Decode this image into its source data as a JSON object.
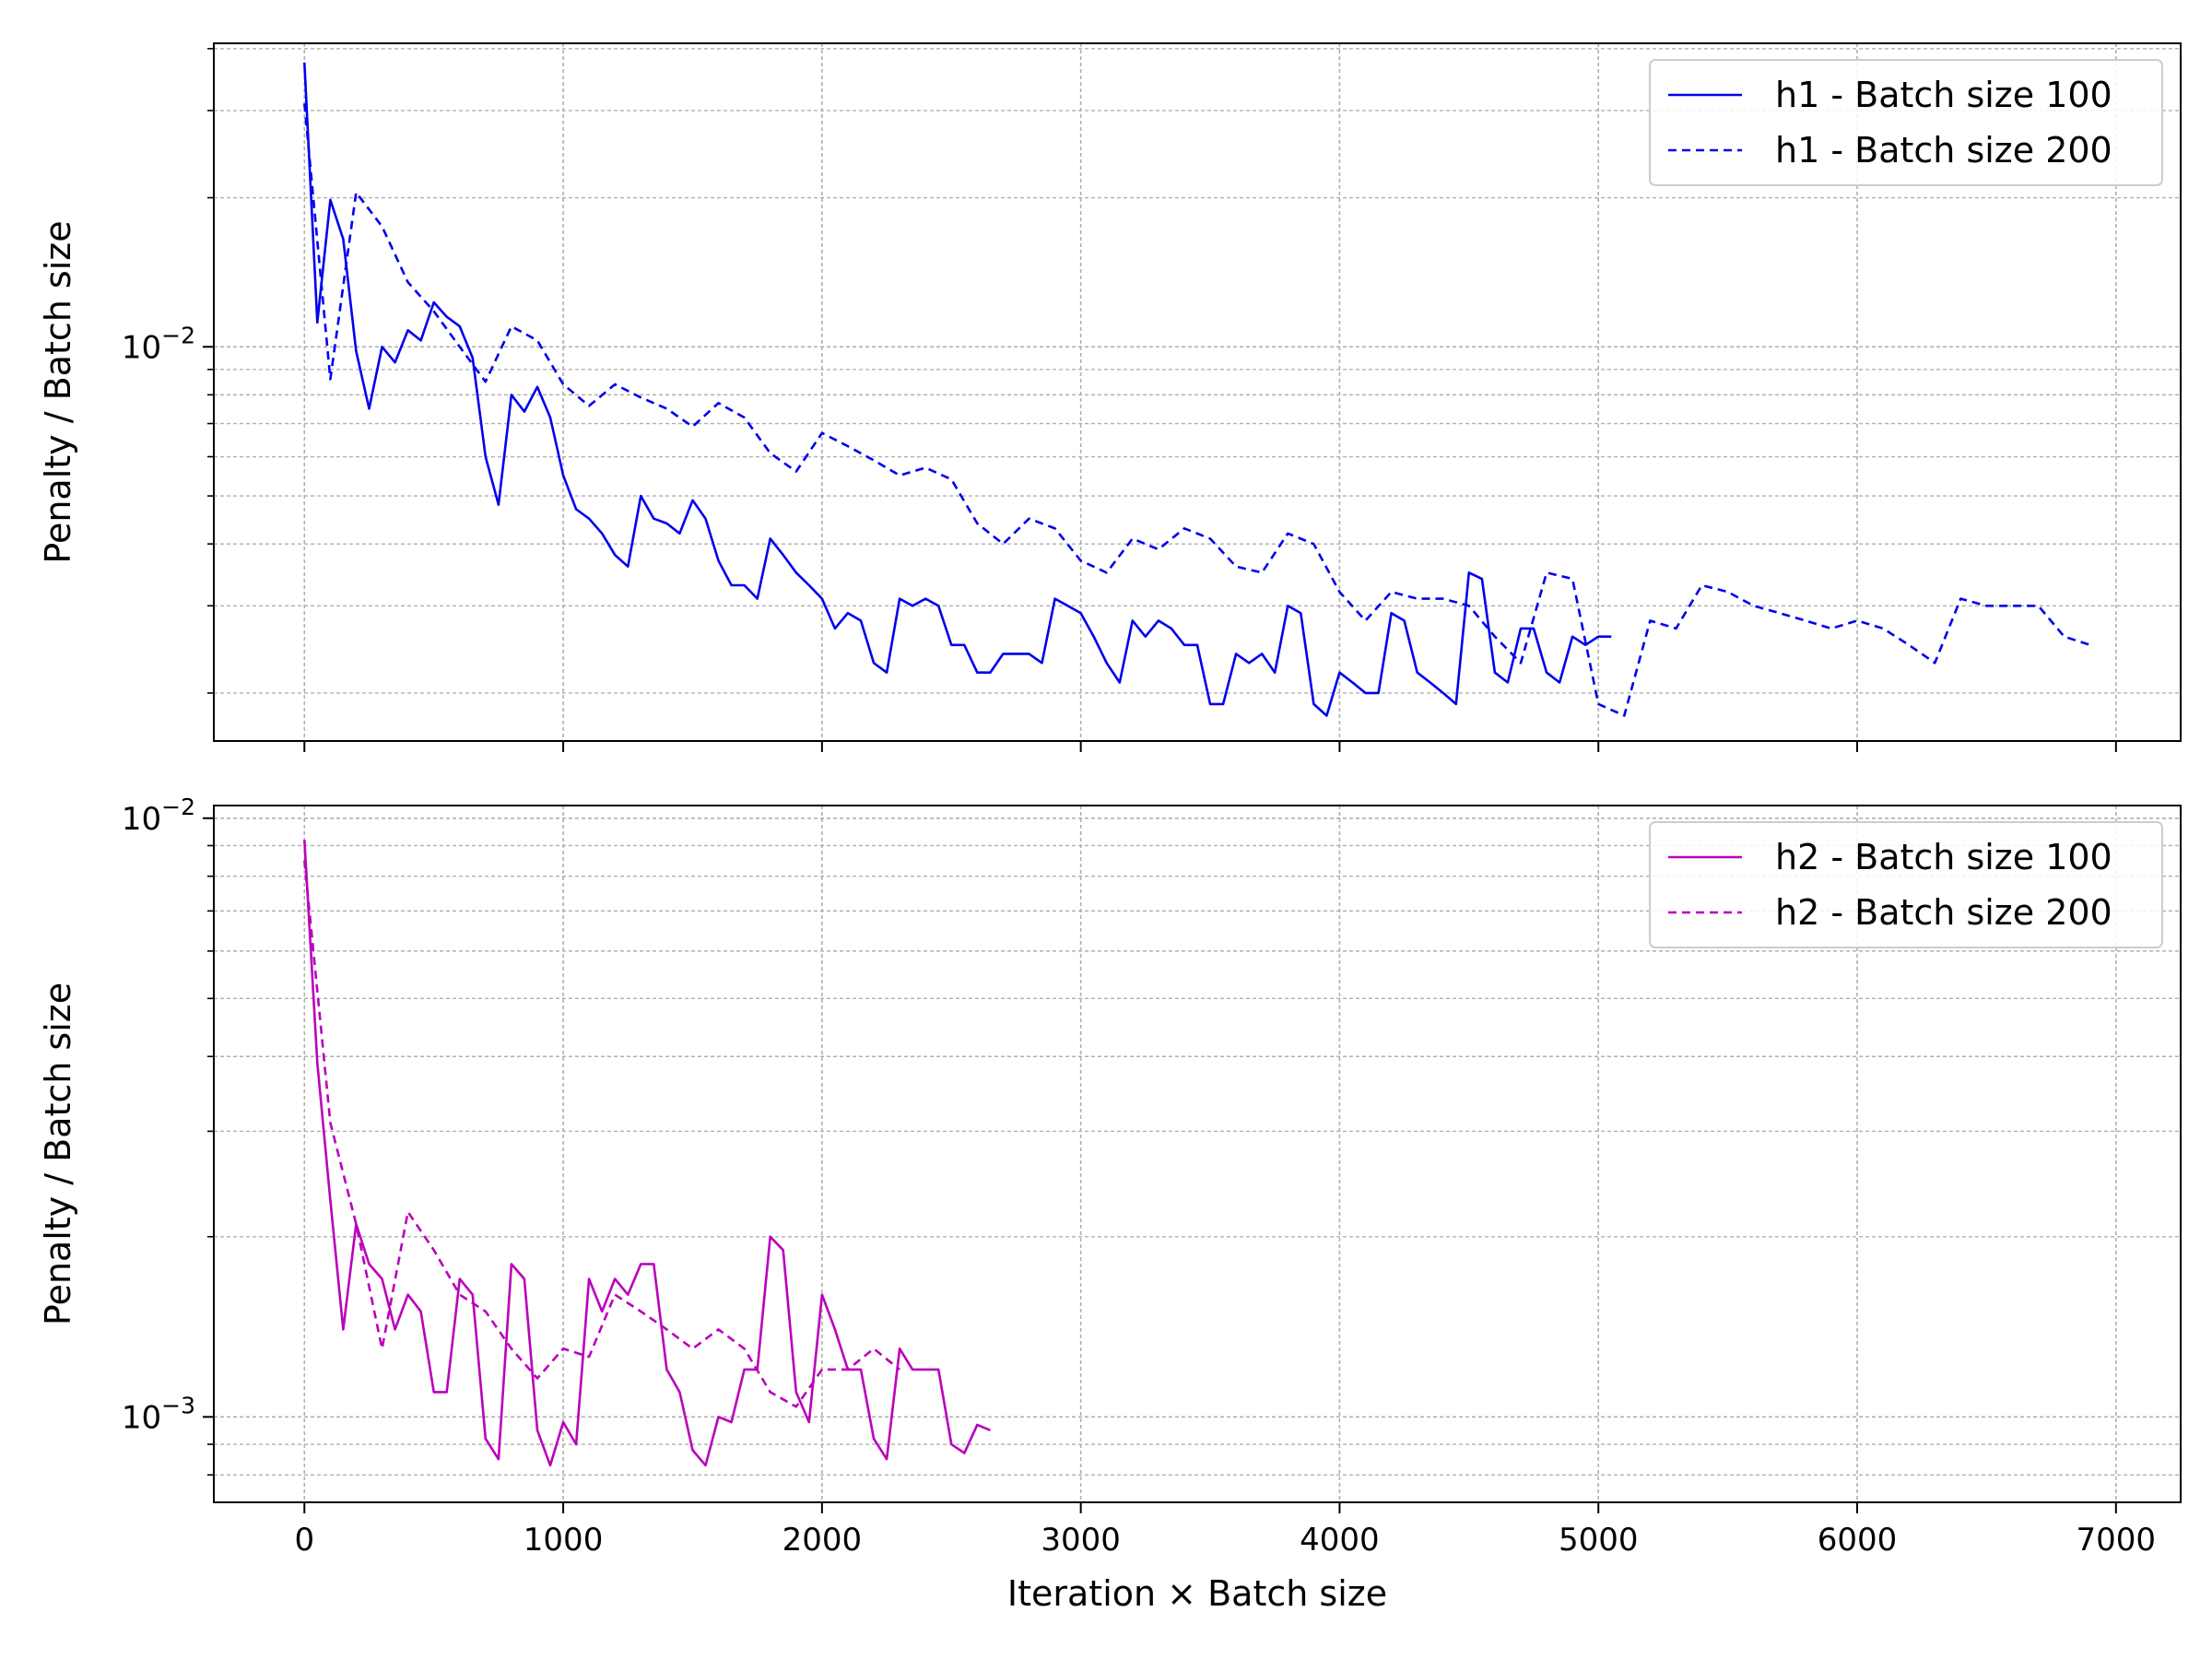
{
  "chart_data": [
    {
      "type": "line",
      "yscale": "log",
      "ylabel": "Penalty / Batch size",
      "xlabel": "",
      "xlim": [
        -350,
        7250
      ],
      "ylim": [
        0.0016,
        0.041
      ],
      "x_ticks": [
        0,
        1000,
        2000,
        3000,
        4000,
        5000,
        6000,
        7000
      ],
      "y_major_tick": {
        "value": 0.01,
        "base": "10",
        "exp": "−2"
      },
      "grid": true,
      "legend_position": "top-right",
      "series": [
        {
          "name": "h1 - Batch size 100",
          "color": "#0000ee",
          "style": "solid",
          "x": [
            0,
            50,
            100,
            150,
            200,
            250,
            300,
            350,
            400,
            450,
            500,
            550,
            600,
            650,
            700,
            750,
            800,
            850,
            900,
            950,
            1000,
            1050,
            1100,
            1150,
            1200,
            1250,
            1300,
            1350,
            1400,
            1450,
            1500,
            1550,
            1600,
            1650,
            1700,
            1750,
            1800,
            1850,
            1900,
            1950,
            2000,
            2050,
            2100,
            2150,
            2200,
            2250,
            2300,
            2350,
            2400,
            2450,
            2500,
            2550,
            2600,
            2650,
            2700,
            2750,
            2800,
            2850,
            2900,
            2950,
            3000,
            3050,
            3100,
            3150,
            3200,
            3250,
            3300,
            3350,
            3400,
            3450,
            3500,
            3550,
            3600,
            3650,
            3700,
            3750,
            3800,
            3850,
            3900,
            3950,
            4000,
            4050,
            4100,
            4150,
            4200,
            4250,
            4300,
            4350,
            4400,
            4450,
            4500,
            4550,
            4600,
            4650,
            4700,
            4750,
            4800,
            4850,
            4900,
            4950,
            5000,
            5050
          ],
          "values": [
            0.0375,
            0.0112,
            0.0198,
            0.0165,
            0.0098,
            0.0075,
            0.01,
            0.0093,
            0.0108,
            0.0103,
            0.0123,
            0.0115,
            0.011,
            0.0095,
            0.006,
            0.0048,
            0.008,
            0.0074,
            0.0083,
            0.0072,
            0.0055,
            0.0047,
            0.0045,
            0.0042,
            0.0038,
            0.0036,
            0.005,
            0.0045,
            0.0044,
            0.0042,
            0.0049,
            0.0045,
            0.0037,
            0.0033,
            0.0033,
            0.0031,
            0.0041,
            0.0038,
            0.0035,
            0.0033,
            0.0031,
            0.0027,
            0.0029,
            0.0028,
            0.0023,
            0.0022,
            0.0031,
            0.003,
            0.0031,
            0.003,
            0.0025,
            0.0025,
            0.0022,
            0.0022,
            0.0024,
            0.0024,
            0.0024,
            0.0023,
            0.0031,
            0.003,
            0.0029,
            0.0026,
            0.0023,
            0.0021,
            0.0028,
            0.0026,
            0.0028,
            0.0027,
            0.0025,
            0.0025,
            0.0019,
            0.0019,
            0.0024,
            0.0023,
            0.0024,
            0.0022,
            0.003,
            0.0029,
            0.0019,
            0.0018,
            0.0022,
            0.0021,
            0.002,
            0.002,
            0.0029,
            0.0028,
            0.0022,
            0.0021,
            0.002,
            0.0019,
            0.0035,
            0.0034,
            0.0022,
            0.0021,
            0.0027,
            0.0027,
            0.0022,
            0.0021,
            0.0026,
            0.0025,
            0.0026,
            0.0026
          ]
        },
        {
          "name": "h1 - Batch size 200",
          "color": "#0000ee",
          "style": "dashed",
          "x": [
            0,
            100,
            200,
            300,
            400,
            500,
            600,
            700,
            800,
            900,
            1000,
            1100,
            1200,
            1300,
            1400,
            1500,
            1600,
            1700,
            1800,
            1900,
            2000,
            2100,
            2200,
            2300,
            2400,
            2500,
            2600,
            2700,
            2800,
            2900,
            3000,
            3100,
            3200,
            3300,
            3400,
            3500,
            3600,
            3700,
            3800,
            3900,
            4000,
            4100,
            4200,
            4300,
            4400,
            4500,
            4600,
            4700,
            4800,
            4900,
            5000,
            5100,
            5200,
            5300,
            5400,
            5500,
            5600,
            5700,
            5800,
            5900,
            6000,
            6100,
            6200,
            6300,
            6400,
            6500,
            6600,
            6700,
            6800,
            6900
          ],
          "values": [
            0.031,
            0.0086,
            0.0205,
            0.0175,
            0.0135,
            0.0118,
            0.01,
            0.0085,
            0.011,
            0.0103,
            0.0084,
            0.0076,
            0.0084,
            0.0079,
            0.0075,
            0.0069,
            0.0077,
            0.0072,
            0.0061,
            0.0056,
            0.0067,
            0.0063,
            0.0059,
            0.0055,
            0.0057,
            0.0054,
            0.0044,
            0.004,
            0.0045,
            0.0043,
            0.0037,
            0.0035,
            0.0041,
            0.0039,
            0.0043,
            0.0041,
            0.0036,
            0.0035,
            0.0042,
            0.004,
            0.0032,
            0.0028,
            0.0032,
            0.0031,
            0.0031,
            0.003,
            0.0026,
            0.0023,
            0.0035,
            0.0034,
            0.0019,
            0.0018,
            0.0028,
            0.0027,
            0.0033,
            0.0032,
            0.003,
            0.0029,
            0.0028,
            0.0027,
            0.0028,
            0.0027,
            0.0025,
            0.0023,
            0.0031,
            0.003,
            0.003,
            0.003,
            0.0026,
            0.0025
          ]
        }
      ]
    },
    {
      "type": "line",
      "yscale": "log",
      "ylabel": "Penalty / Batch size",
      "xlabel": "Iteration × Batch size",
      "xlim": [
        -350,
        7250
      ],
      "ylim": [
        0.00072,
        0.0105
      ],
      "x_ticks": [
        0,
        1000,
        2000,
        3000,
        4000,
        5000,
        6000,
        7000
      ],
      "y_major_ticks": [
        {
          "value": 0.01,
          "base": "10",
          "exp": "−2"
        },
        {
          "value": 0.001,
          "base": "10",
          "exp": "−3"
        }
      ],
      "grid": true,
      "legend_position": "top-right",
      "series": [
        {
          "name": "h2 - Batch size 100",
          "color": "#bb00bb",
          "style": "solid",
          "x": [
            0,
            50,
            100,
            150,
            200,
            250,
            300,
            350,
            400,
            450,
            500,
            550,
            600,
            650,
            700,
            750,
            800,
            850,
            900,
            950,
            1000,
            1050,
            1100,
            1150,
            1200,
            1250,
            1300,
            1350,
            1400,
            1450,
            1500,
            1550,
            1600,
            1650,
            1700,
            1750,
            1800,
            1850,
            1900,
            1950,
            2000,
            2050,
            2100,
            2150,
            2200,
            2250,
            2300,
            2350,
            2400,
            2450,
            2500,
            2550,
            2600,
            2650
          ],
          "values": [
            0.0092,
            0.0039,
            0.0023,
            0.0014,
            0.0021,
            0.0018,
            0.0017,
            0.0014,
            0.0016,
            0.0015,
            0.0011,
            0.0011,
            0.0017,
            0.0016,
            0.00092,
            0.00085,
            0.0018,
            0.0017,
            0.00095,
            0.00083,
            0.00098,
            0.0009,
            0.0017,
            0.0015,
            0.0017,
            0.0016,
            0.0018,
            0.0018,
            0.0012,
            0.0011,
            0.00088,
            0.00083,
            0.001,
            0.00098,
            0.0012,
            0.0012,
            0.002,
            0.0019,
            0.0011,
            0.00098,
            0.0016,
            0.0014,
            0.0012,
            0.0012,
            0.00092,
            0.00085,
            0.0013,
            0.0012,
            0.0012,
            0.0012,
            0.0009,
            0.00087,
            0.00097,
            0.00095
          ]
        },
        {
          "name": "h2 - Batch size 200",
          "color": "#bb00bb",
          "style": "dashed",
          "x": [
            0,
            100,
            200,
            300,
            400,
            500,
            600,
            700,
            800,
            900,
            1000,
            1100,
            1200,
            1300,
            1400,
            1500,
            1600,
            1700,
            1800,
            1900,
            2000,
            2100,
            2200,
            2300
          ],
          "values": [
            0.0085,
            0.0031,
            0.0021,
            0.0013,
            0.0022,
            0.0019,
            0.0016,
            0.0015,
            0.0013,
            0.00116,
            0.0013,
            0.00126,
            0.0016,
            0.0015,
            0.0014,
            0.0013,
            0.0014,
            0.0013,
            0.0011,
            0.00104,
            0.0012,
            0.0012,
            0.0013,
            0.0012
          ]
        }
      ]
    }
  ]
}
